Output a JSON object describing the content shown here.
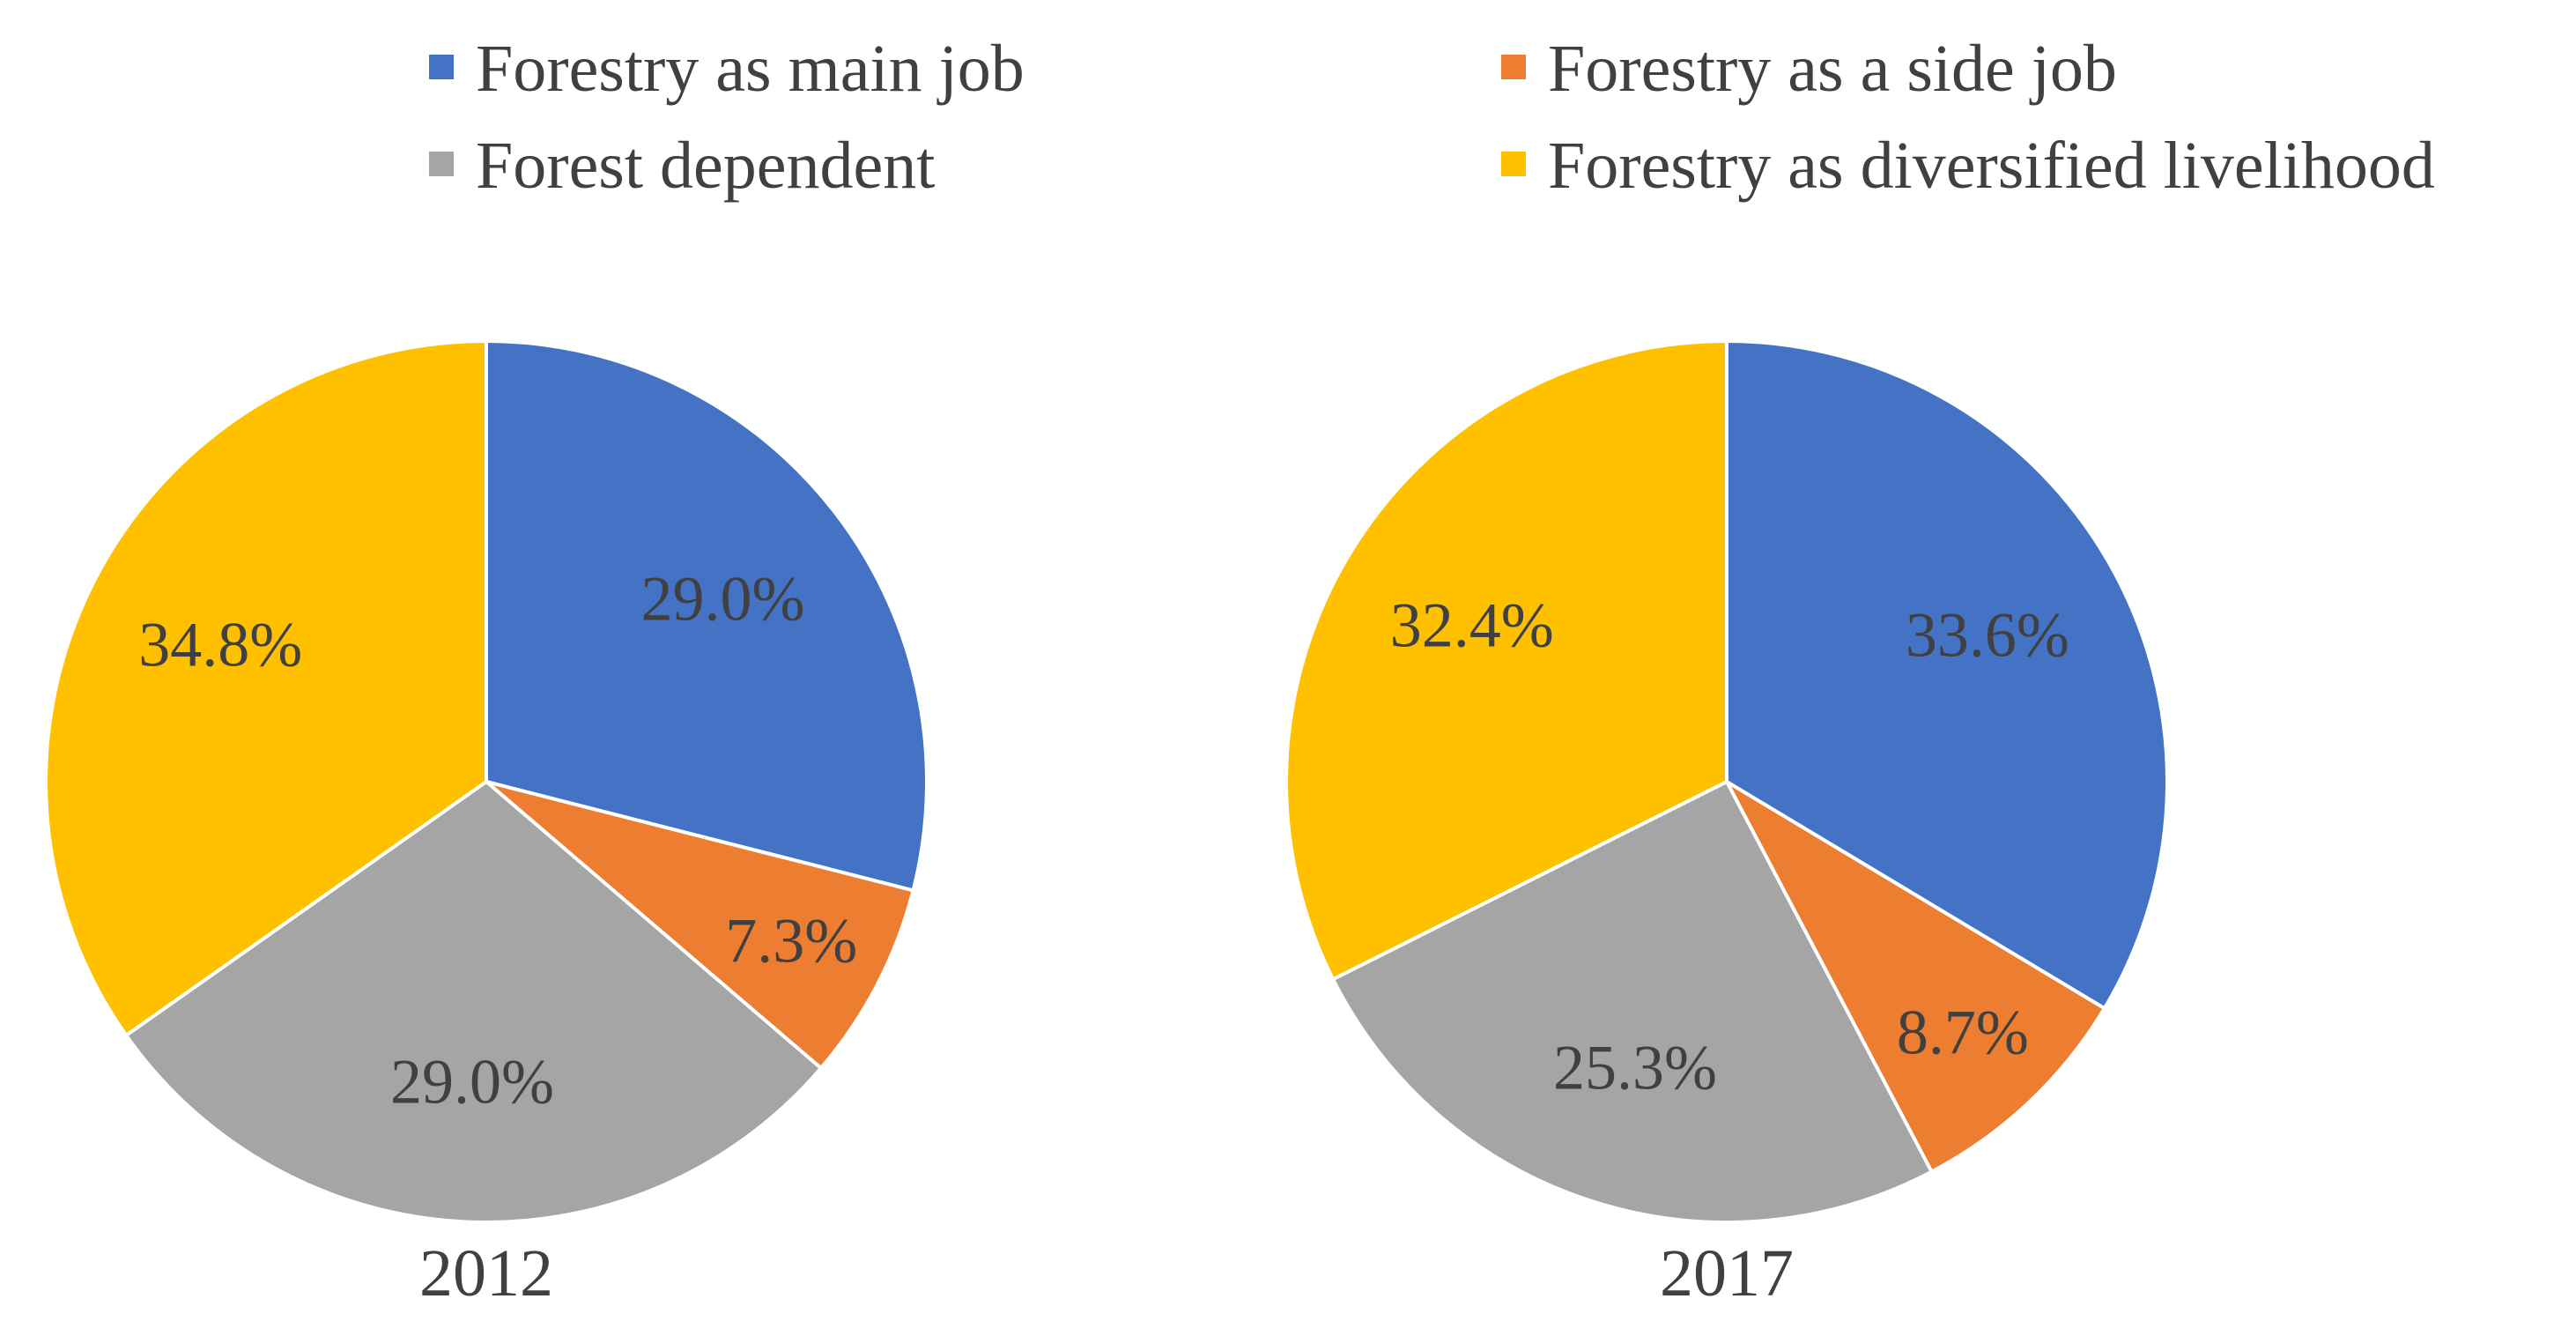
{
  "chart_data": [
    {
      "type": "pie",
      "title": "2012",
      "categories": [
        "Forestry as main job",
        "Forestry as a side job",
        "Forest dependent",
        "Forestry as diversified livelihood"
      ],
      "values": [
        29.0,
        7.3,
        29.0,
        34.8
      ],
      "labels": [
        "29.0%",
        "7.3%",
        "29.0%",
        "34.8%"
      ],
      "start": "12 o'clock",
      "direction": "clockwise"
    },
    {
      "type": "pie",
      "title": "2017",
      "categories": [
        "Forestry as main job",
        "Forestry as a side job",
        "Forest dependent",
        "Forestry as diversified livelihood"
      ],
      "values": [
        33.6,
        8.7,
        25.3,
        32.4
      ],
      "labels": [
        "33.6%",
        "8.7%",
        "25.3%",
        "32.4%"
      ],
      "start": "12 o'clock",
      "direction": "clockwise"
    }
  ],
  "legend": {
    "placement": "top",
    "items": [
      {
        "label": "Forestry as main job",
        "color": "#4472C4"
      },
      {
        "label": "Forestry as a side job",
        "color": "#ED7D31"
      },
      {
        "label": "Forest dependent",
        "color": "#A5A5A5"
      },
      {
        "label": "Forestry as diversified livelihood",
        "color": "#FFC000"
      }
    ]
  },
  "colors": {
    "slice_border": "#FFFFFF",
    "text": "#404040"
  }
}
